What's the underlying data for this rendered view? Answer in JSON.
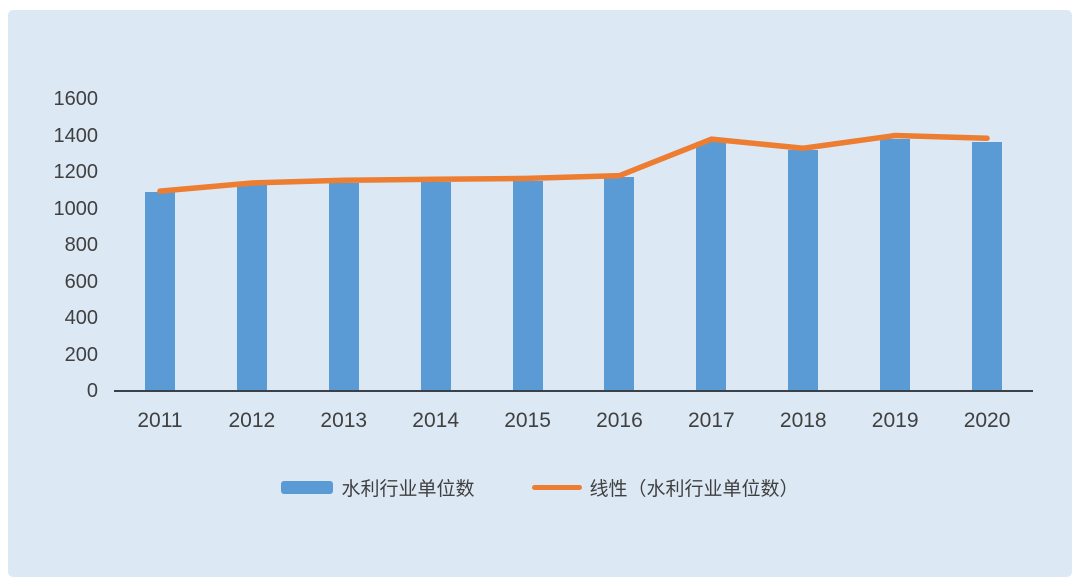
{
  "chart_data": {
    "type": "bar",
    "categories": [
      "2011",
      "2012",
      "2013",
      "2014",
      "2015",
      "2016",
      "2017",
      "2018",
      "2019",
      "2020"
    ],
    "series": [
      {
        "name": "水利行业单位数",
        "type": "bar",
        "color": "#5b9bd5",
        "values": [
          1090,
          1130,
          1140,
          1145,
          1150,
          1170,
          1365,
          1320,
          1380,
          1365
        ]
      },
      {
        "name": "线性（水利行业单位数）",
        "type": "line",
        "color": "#ed7d31",
        "values": [
          1095,
          1140,
          1155,
          1160,
          1165,
          1180,
          1380,
          1330,
          1400,
          1385
        ]
      }
    ],
    "title": "",
    "xlabel": "",
    "ylabel": "",
    "ylim": [
      0,
      1600
    ],
    "yticks": [
      0,
      200,
      400,
      600,
      800,
      1000,
      1200,
      1400,
      1600
    ],
    "grid": false,
    "legend_position": "bottom"
  },
  "colors": {
    "page_background": "#ffffff",
    "panel_background": "#dce9f5",
    "bar": "#5b9bd5",
    "trendline": "#ed7d31",
    "axis_text": "#404040",
    "axis_line": "#3a4149"
  }
}
